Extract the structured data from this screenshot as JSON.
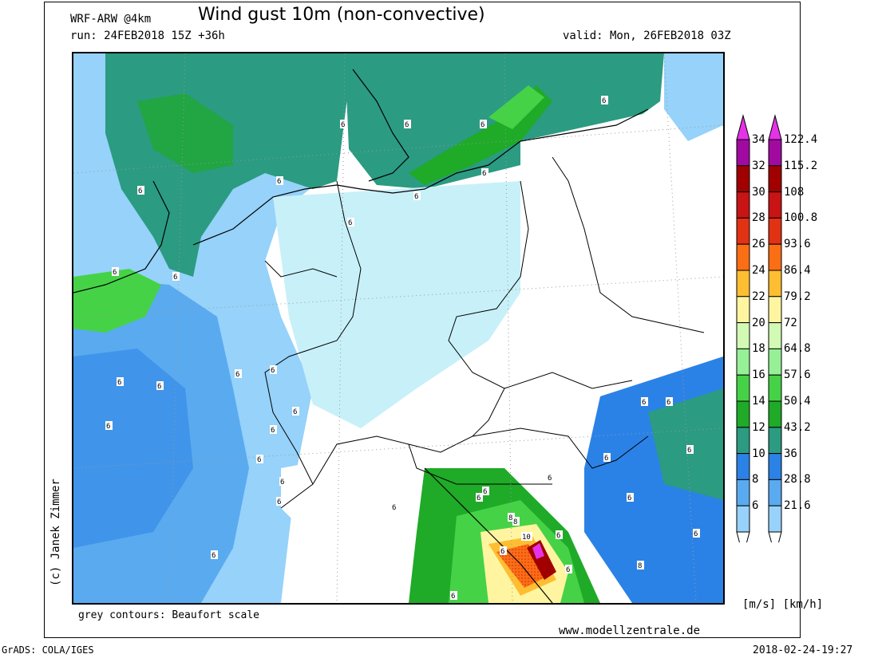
{
  "header": {
    "model": "WRF-ARW @4km",
    "title": "Wind gust 10m (non-convective)",
    "run": "run: 24FEB2018 15Z +36h",
    "valid": "valid: Mon, 26FEB2018 03Z"
  },
  "footer": {
    "copyright": "(c) Janek Zimmer",
    "contours_note": "grey contours: Beaufort scale",
    "website": "www.modellzentrale.de",
    "grads": "GrADS: COLA/IGES",
    "timestamp": "2018-02-24-19:27",
    "units": "[m/s] [km/h]"
  },
  "legend": {
    "colors": [
      "#c8f0f8",
      "#96d2fa",
      "#5aaaf0",
      "#2b82e6",
      "#2b9b82",
      "#1faa28",
      "#46d246",
      "#96f096",
      "#d2fab4",
      "#fff5a0",
      "#ffbe32",
      "#fa6e14",
      "#e13214",
      "#c81414",
      "#a00000",
      "#a00aa0",
      "#e632e6"
    ],
    "ms_labels": [
      "6",
      "8",
      "10",
      "12",
      "14",
      "16",
      "18",
      "20",
      "22",
      "24",
      "26",
      "28",
      "30",
      "32",
      "34"
    ],
    "kmh_labels": [
      "21.6",
      "28.8",
      "36",
      "43.2",
      "50.4",
      "57.6",
      "64.8",
      "72",
      "79.2",
      "86.4",
      "93.6",
      "100.8",
      "108",
      "115.2",
      "122.4"
    ]
  },
  "map": {
    "beaufort_labels": [
      "6",
      "6",
      "6",
      "6",
      "6",
      "6",
      "6",
      "6",
      "6",
      "6",
      "6",
      "6",
      "6",
      "6",
      "6",
      "6",
      "6",
      "6",
      "6",
      "6",
      "6",
      "6",
      "6",
      "6",
      "6",
      "6",
      "6",
      "6",
      "6",
      "6",
      "6",
      "6",
      "6",
      "6",
      "8",
      "10",
      "8",
      "6",
      "6",
      "8"
    ]
  }
}
